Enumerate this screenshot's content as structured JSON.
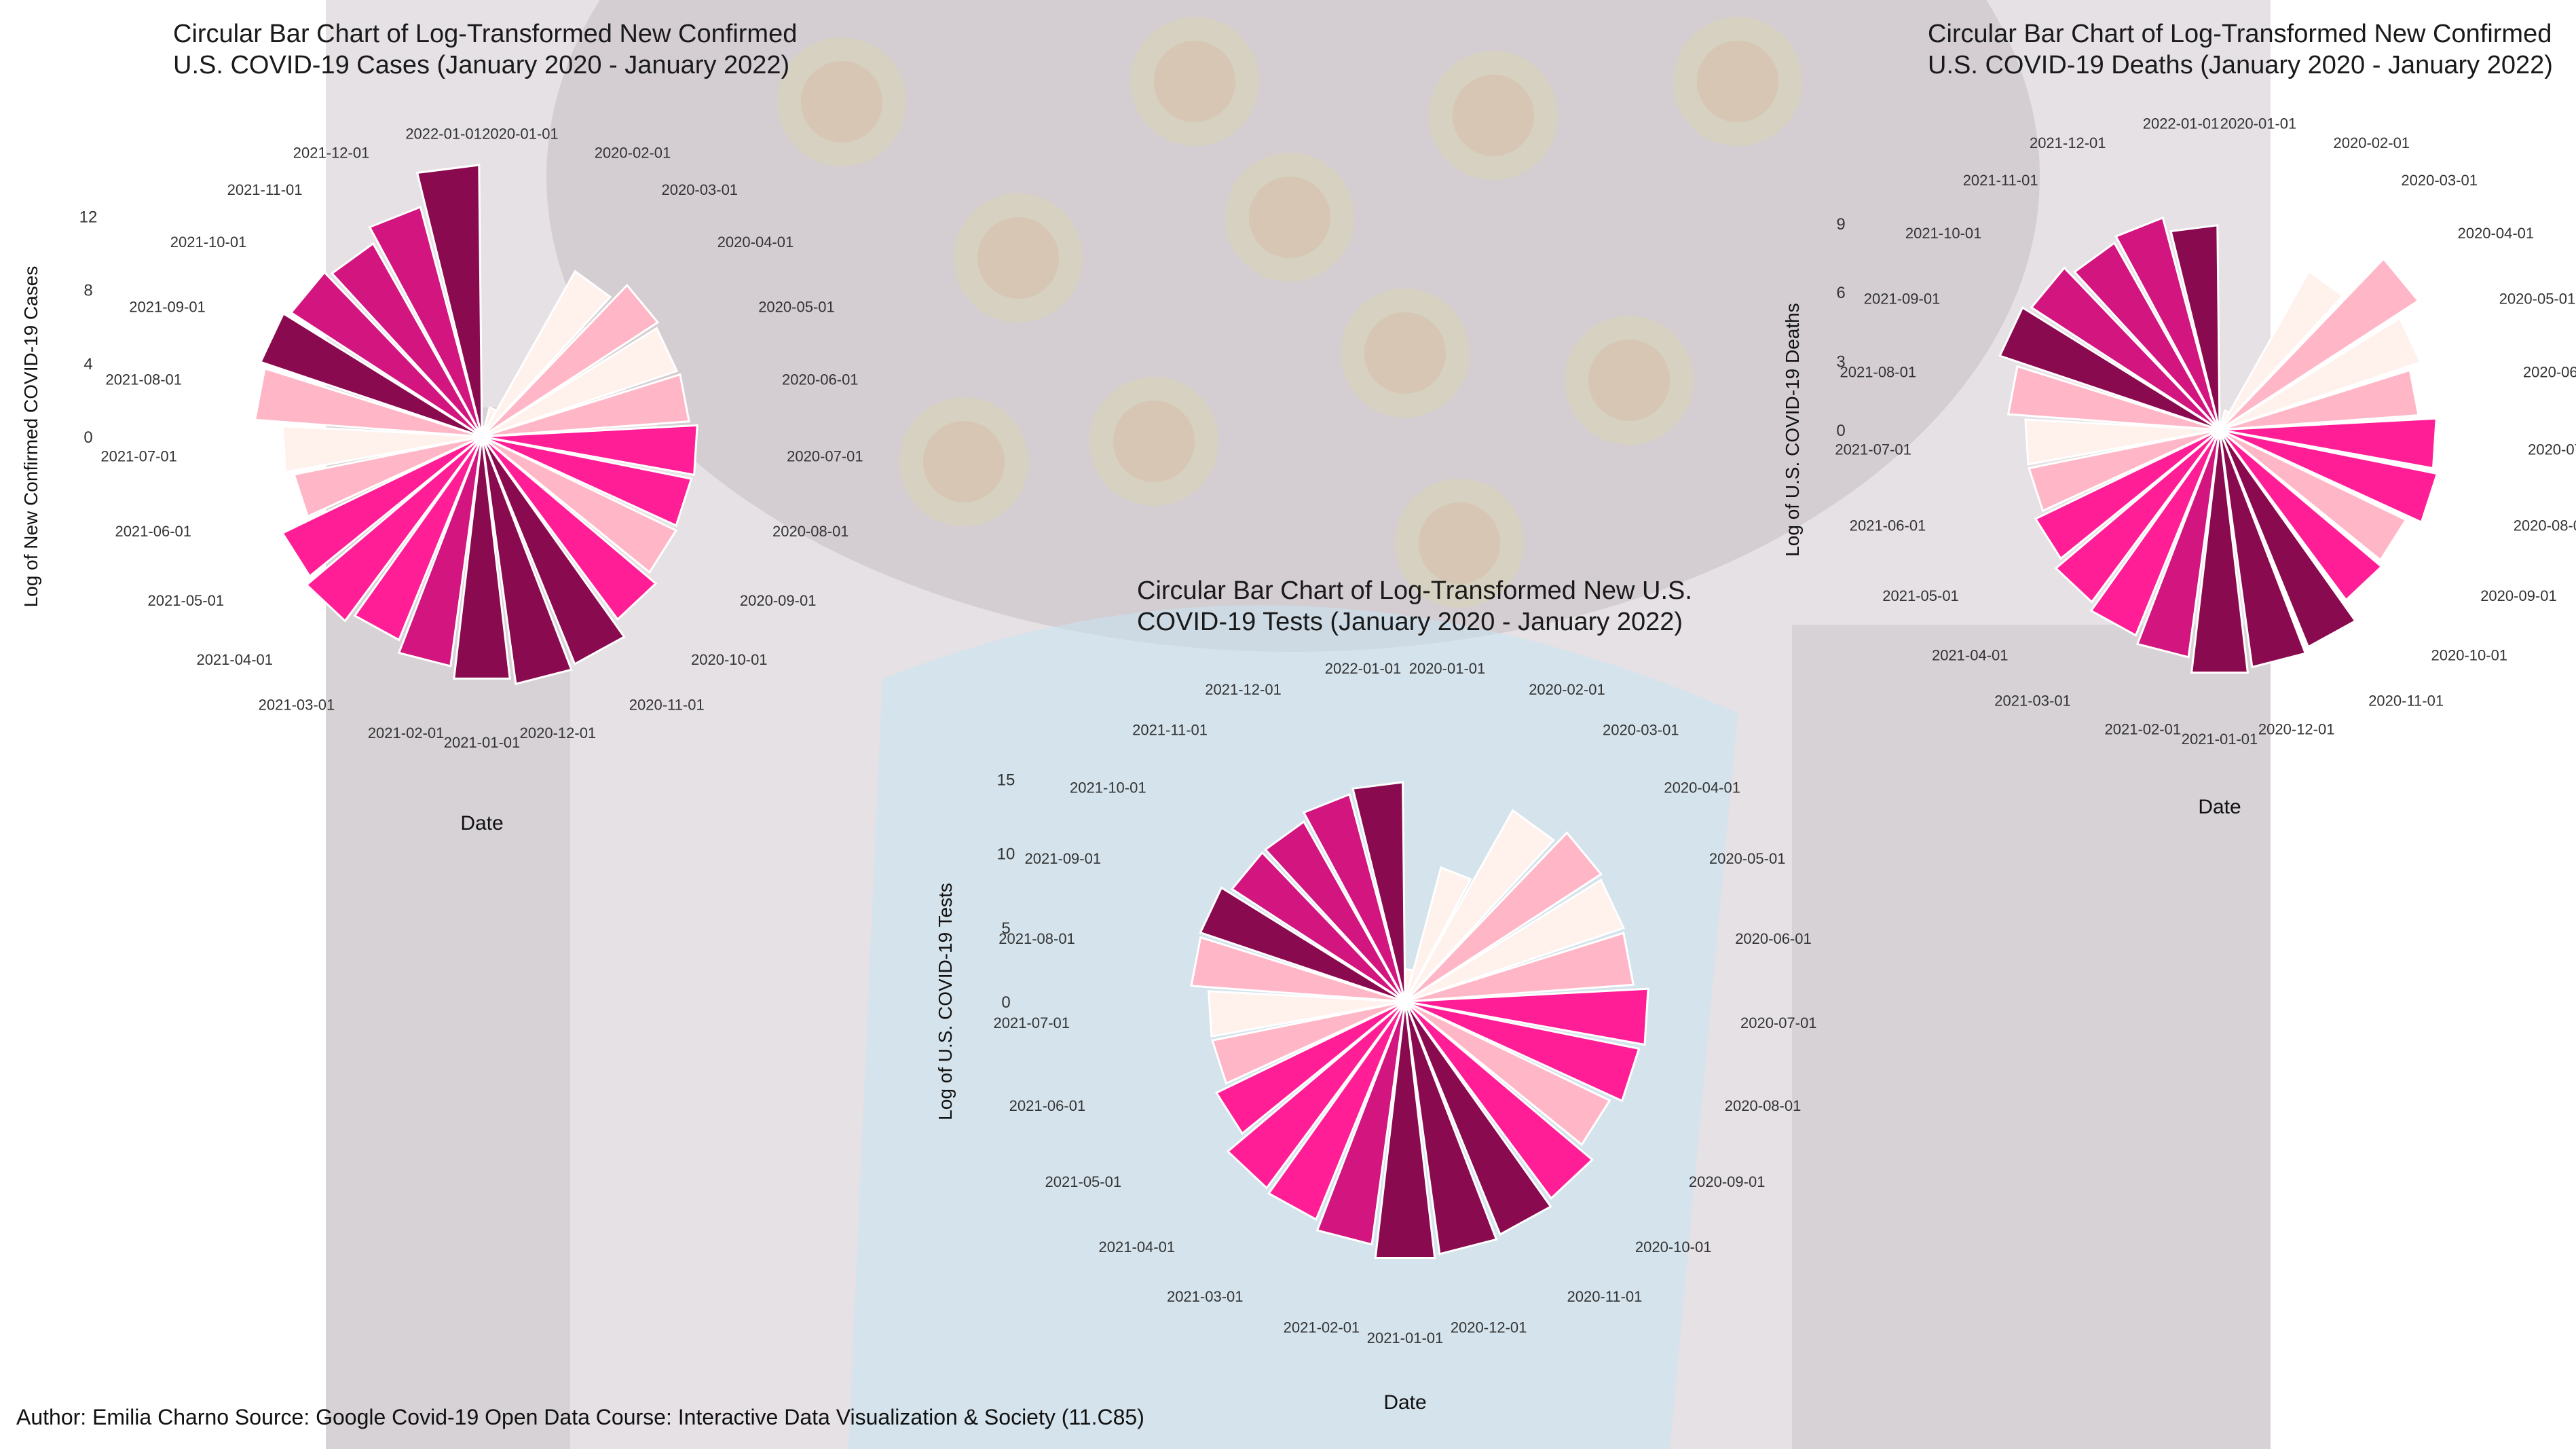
{
  "footer": "Author: Emilia Charno Source: Google Covid-19 Open Data Course: Interactive Data Visualization & Society (11.C85)",
  "colors": {
    "background_art": "#8b7f8a",
    "palette": [
      "#fff1ec",
      "#ffb6c6",
      "#ff1e96",
      "#d2157f",
      "#8a0a4f"
    ]
  },
  "chart_data": [
    {
      "type": "bar",
      "polar": true,
      "title": [
        "Circular Bar Chart of Log-Transformed New Confirmed",
        "U.S. COVID-19 Cases (January 2020 - January 2022)"
      ],
      "xlabel": "Date",
      "ylabel": "Log of New Confirmed COVID-19 Cases",
      "yticks": [
        "0",
        "4",
        "8",
        "12"
      ],
      "ylim": [
        0,
        12
      ],
      "categories": [
        "2020-01-01",
        "2020-02-01",
        "2020-03-01",
        "2020-04-01",
        "2020-05-01",
        "2020-06-01",
        "2020-07-01",
        "2020-08-01",
        "2020-09-01",
        "2020-10-01",
        "2020-11-01",
        "2020-12-01",
        "2021-01-01",
        "2021-02-01",
        "2021-03-01",
        "2021-04-01",
        "2021-05-01",
        "2021-06-01",
        "2021-07-01",
        "2021-08-01",
        "2021-09-01",
        "2021-10-01",
        "2021-11-01",
        "2021-12-01",
        "2022-01-01"
      ],
      "values": [
        0.5,
        1.5,
        9.5,
        10.5,
        10.3,
        10.4,
        10.8,
        10.7,
        10.8,
        11.4,
        12.3,
        12.5,
        12.2,
        11.6,
        11.0,
        11.5,
        11.1,
        9.6,
        10.0,
        11.4,
        11.7,
        11.4,
        11.1,
        11.9,
        13.6
      ],
      "color_index": [
        0,
        0,
        0,
        1,
        0,
        1,
        2,
        2,
        1,
        2,
        4,
        4,
        4,
        3,
        2,
        2,
        2,
        1,
        0,
        1,
        4,
        3,
        3,
        3,
        4
      ]
    },
    {
      "type": "bar",
      "polar": true,
      "title": [
        "Circular Bar Chart of Log-Transformed New Confirmed",
        "U.S. COVID-19 Deaths (January 2020 - January 2022)"
      ],
      "xlabel": "Date",
      "ylabel": "Log of U.S. COVID-19 Deaths",
      "yticks": [
        "0",
        "3",
        "6",
        "9"
      ],
      "ylim": [
        0,
        9
      ],
      "categories": [
        "2020-01-01",
        "2020-02-01",
        "2020-03-01",
        "2020-04-01",
        "2020-05-01",
        "2020-06-01",
        "2020-07-01",
        "2020-08-01",
        "2020-09-01",
        "2020-10-01",
        "2020-11-01",
        "2020-12-01",
        "2021-01-01",
        "2021-02-01",
        "2021-03-01",
        "2021-04-01",
        "2021-05-01",
        "2021-06-01",
        "2021-07-01",
        "2021-08-01",
        "2021-09-01",
        "2021-10-01",
        "2021-11-01",
        "2021-12-01",
        "2022-01-01"
      ],
      "values": [
        0.2,
        0.8,
        7.3,
        9.5,
        8.5,
        8.0,
        8.7,
        8.9,
        8.3,
        8.5,
        9.4,
        9.6,
        9.8,
        9.2,
        8.9,
        8.6,
        8.2,
        7.8,
        7.8,
        8.5,
        9.3,
        9.0,
        8.6,
        8.8,
        8.2
      ],
      "color_index": [
        0,
        0,
        0,
        1,
        0,
        1,
        2,
        2,
        1,
        2,
        4,
        4,
        4,
        3,
        2,
        2,
        2,
        1,
        0,
        1,
        4,
        3,
        3,
        3,
        4
      ]
    },
    {
      "type": "bar",
      "polar": true,
      "title": [
        "Circular Bar Chart of Log-Transformed New U.S.",
        "COVID-19 Tests (January 2020 - January 2022)"
      ],
      "xlabel": "Date",
      "ylabel": "Log of U.S. COVID-19 Tests",
      "yticks": [
        "0",
        "5",
        "10",
        "15"
      ],
      "ylim": [
        0,
        15
      ],
      "categories": [
        "2020-01-01",
        "2020-02-01",
        "2020-03-01",
        "2020-04-01",
        "2020-05-01",
        "2020-06-01",
        "2020-07-01",
        "2020-08-01",
        "2020-09-01",
        "2020-10-01",
        "2020-11-01",
        "2020-12-01",
        "2021-01-01",
        "2021-02-01",
        "2021-03-01",
        "2021-04-01",
        "2021-05-01",
        "2021-06-01",
        "2021-07-01",
        "2021-08-01",
        "2021-09-01",
        "2021-10-01",
        "2021-11-01",
        "2021-12-01",
        "2022-01-01"
      ],
      "values": [
        2.0,
        8.6,
        13.6,
        14.5,
        14.3,
        14.2,
        15.1,
        14.8,
        14.1,
        15.2,
        15.6,
        15.8,
        16.0,
        15.2,
        14.6,
        14.4,
        13.0,
        12.2,
        12.2,
        13.3,
        13.4,
        12.8,
        12.8,
        13.3,
        13.6
      ],
      "color_index": [
        0,
        0,
        0,
        1,
        0,
        1,
        2,
        2,
        1,
        2,
        4,
        4,
        4,
        3,
        2,
        2,
        2,
        1,
        0,
        1,
        4,
        3,
        3,
        3,
        4
      ]
    }
  ]
}
